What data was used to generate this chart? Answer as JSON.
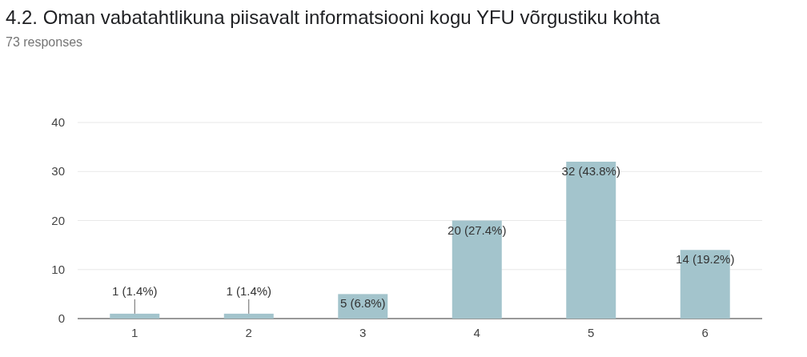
{
  "chart_data": {
    "type": "bar",
    "title": "4.2. Oman vabatahtlikuna piisavalt informatsiooni kogu YFU võrgustiku kohta",
    "subtitle": "73 responses",
    "categories": [
      "1",
      "2",
      "3",
      "4",
      "5",
      "6"
    ],
    "values": [
      1,
      1,
      5,
      20,
      32,
      14
    ],
    "value_labels": [
      "1 (1.4%)",
      "1 (1.4%)",
      "5 (6.8%)",
      "20 (27.4%)",
      "32 (43.8%)",
      "14 (19.2%)"
    ],
    "color": "#a3c4cc",
    "ylim": [
      0,
      40
    ],
    "yticks": [
      0,
      10,
      20,
      30,
      40
    ],
    "grid": "y"
  }
}
